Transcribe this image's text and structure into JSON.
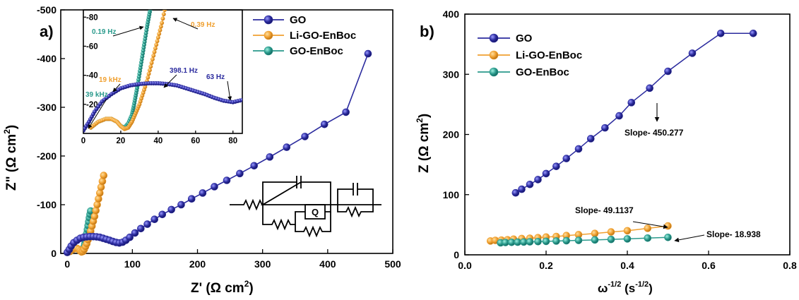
{
  "chart_data": [
    {
      "type": "scatter",
      "panel_label": "a)",
      "xlabel": "Z' (Ω  cm²)",
      "xlabel_base": "Z' (Ω  cm",
      "ylabel": "Z\" (Ω  cm²)",
      "ylabel_base": "Z\" (Ω  cm",
      "unit_exponent": "2",
      "xlim": [
        -10,
        500
      ],
      "ylim": [
        0,
        -500
      ],
      "xticks": [
        "0",
        "100",
        "200",
        "300",
        "400",
        "500"
      ],
      "yticks": [
        "0",
        "-100",
        "-200",
        "-300",
        "-400",
        "-500"
      ],
      "legend_position": "top-right",
      "colors": {
        "GO": "#2b2b9e",
        "Li-GO-EnBoc": "#f0a030",
        "GO-EnBoc": "#2a9a8c"
      },
      "series": [
        {
          "name": "GO",
          "x": [
            0,
            3,
            6,
            10,
            15,
            20,
            25,
            30,
            35,
            40,
            45,
            50,
            55,
            60,
            65,
            70,
            75,
            80,
            85,
            90,
            96,
            104,
            113,
            123,
            134,
            146,
            160,
            175,
            191,
            208,
            226,
            245,
            265,
            287,
            311,
            337,
            365,
            395,
            428,
            462
          ],
          "y": [
            -2,
            -8,
            -15,
            -22,
            -27,
            -31,
            -33,
            -34,
            -34.5,
            -34.5,
            -34,
            -33,
            -31,
            -29,
            -27,
            -24.5,
            -22.5,
            -21.5,
            -23,
            -27,
            -33,
            -42,
            -51,
            -60,
            -70,
            -80,
            -90,
            -100,
            -112,
            -124,
            -137,
            -150,
            -164,
            -180,
            -198,
            -218,
            -240,
            -265,
            -290,
            -410
          ]
        },
        {
          "name": "Li-GO-EnBoc",
          "x": [
            4,
            8,
            12,
            15,
            18,
            20,
            22,
            24,
            26,
            28,
            30,
            32,
            34,
            36,
            38,
            40,
            42,
            44,
            46,
            48,
            50,
            52,
            54,
            56
          ],
          "y": [
            -4,
            -8,
            -10,
            -10,
            -8,
            -5,
            -3,
            -4,
            -8,
            -14,
            -20,
            -28,
            -36,
            -46,
            -56,
            -66,
            -76,
            -88,
            -100,
            -112,
            -124,
            -136,
            -148,
            -160
          ]
        },
        {
          "name": "GO-EnBoc",
          "x": [
            4,
            8,
            12,
            15,
            18,
            20,
            22,
            24,
            26,
            27,
            28,
            29,
            30,
            31,
            32,
            33,
            34,
            35,
            36
          ],
          "y": [
            -4,
            -8,
            -10,
            -10,
            -8,
            -5,
            -4,
            -7,
            -13,
            -19,
            -26,
            -33,
            -41,
            -49,
            -57,
            -65,
            -73,
            -80,
            -87
          ]
        }
      ],
      "inset": {
        "xlim": [
          0,
          85
        ],
        "ylim": [
          0,
          -85
        ],
        "xticks": [
          "0",
          "20",
          "40",
          "60",
          "80"
        ],
        "yticks": [
          "-20",
          "-40",
          "-60",
          "-80"
        ],
        "annotations": [
          {
            "text": "0.19 Hz",
            "series": "GO-EnBoc"
          },
          {
            "text": "0.39 Hz",
            "series": "Li-GO-EnBoc"
          },
          {
            "text": "19 kHz",
            "series": "Li-GO-EnBoc"
          },
          {
            "text": "398.1 Hz",
            "series": "GO"
          },
          {
            "text": "63 Hz",
            "series": "GO"
          },
          {
            "text": "39 kHz",
            "series": "GO-EnBoc"
          }
        ]
      }
    },
    {
      "type": "scatter",
      "panel_label": "b)",
      "xlabel": "ω^-1/2 (s^-1/2)",
      "ylabel": "Z (Ω cm²)",
      "ylabel_base": "Z (Ω cm",
      "unit_exponent": "2",
      "xlabel_parts": [
        "ω",
        "-1/2",
        " (s",
        "-1/2",
        ")"
      ],
      "xlim": [
        0.0,
        0.8
      ],
      "ylim": [
        0,
        400
      ],
      "xticks": [
        "0.0",
        "0.2",
        "0.4",
        "0.6",
        "0.8"
      ],
      "yticks": [
        "0",
        "100",
        "200",
        "300",
        "400"
      ],
      "legend_position": "top-left",
      "colors": {
        "GO": "#2b2b9e",
        "Li-GO-EnBoc": "#f0a030",
        "GO-EnBoc": "#2a9a8c"
      },
      "series": [
        {
          "name": "GO",
          "x": [
            0.125,
            0.14,
            0.16,
            0.18,
            0.2,
            0.225,
            0.25,
            0.28,
            0.31,
            0.345,
            0.38,
            0.41,
            0.455,
            0.5,
            0.56,
            0.63,
            0.71
          ],
          "y": [
            103,
            109,
            117,
            125,
            135,
            147,
            160,
            176,
            193,
            211,
            231,
            253,
            277,
            305,
            335,
            368,
            368
          ]
        },
        {
          "name": "Li-GO-EnBoc",
          "x": [
            0.063,
            0.075,
            0.09,
            0.105,
            0.12,
            0.14,
            0.16,
            0.18,
            0.2,
            0.225,
            0.25,
            0.28,
            0.32,
            0.36,
            0.4,
            0.45,
            0.5
          ],
          "y": [
            23,
            24,
            24.5,
            25,
            26,
            27,
            27.5,
            28.5,
            29.5,
            30.5,
            32,
            33.5,
            35.5,
            38,
            40,
            44,
            48
          ]
        },
        {
          "name": "GO-EnBoc",
          "x": [
            0.088,
            0.1,
            0.115,
            0.13,
            0.145,
            0.16,
            0.18,
            0.2,
            0.225,
            0.25,
            0.28,
            0.32,
            0.36,
            0.4,
            0.45,
            0.5
          ],
          "y": [
            20,
            20.5,
            20.8,
            21,
            21.3,
            21.6,
            22,
            22.4,
            22.9,
            23.4,
            24,
            24.8,
            25.6,
            26.5,
            27.8,
            29
          ]
        }
      ],
      "annotations": [
        {
          "text": "Slope- 450.277",
          "series": "GO"
        },
        {
          "text": "Slope- 49.1137",
          "series": "Li-GO-EnBoc"
        },
        {
          "text": "Slope- 18.938",
          "series": "GO-EnBoc"
        }
      ]
    }
  ]
}
